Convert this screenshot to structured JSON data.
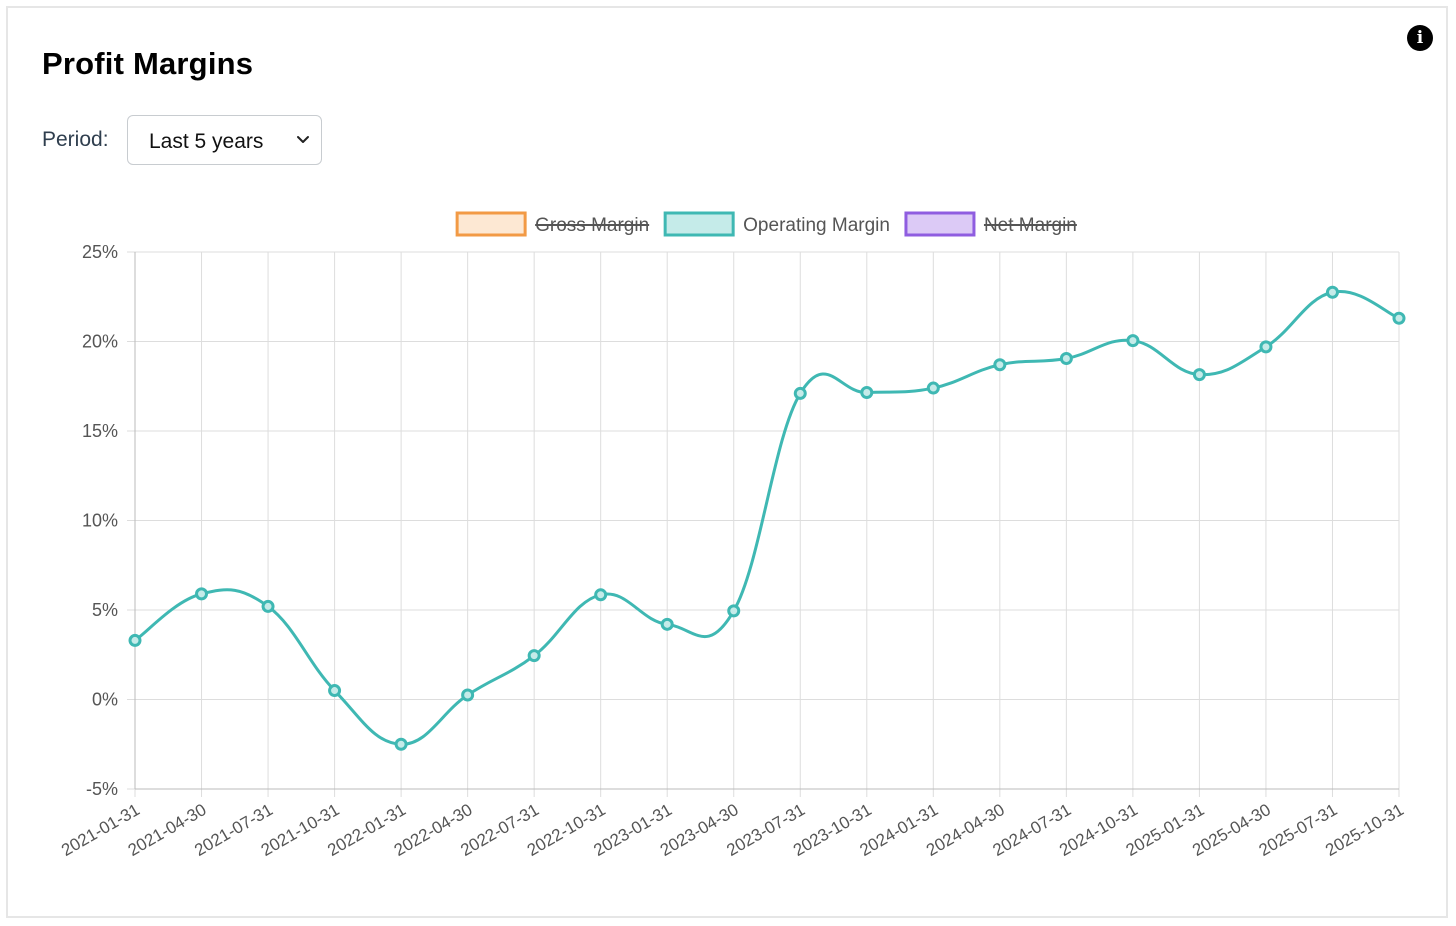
{
  "card": {
    "title": "Profit Margins",
    "info_icon": "info-icon",
    "period": {
      "label": "Period:",
      "selected": "Last 5 years",
      "icon": "chevron-down-icon"
    }
  },
  "colors": {
    "gross": "#f29a45",
    "gross_fill": "#fde8d3",
    "operating": "#3fb8b3",
    "operating_fill": "#c5ebe9",
    "net": "#8f5de0",
    "net_fill": "#dccaf6",
    "grid": "#dddddd",
    "axis_text": "#555555"
  },
  "chart_data": {
    "type": "line",
    "ylim": [
      -5,
      25
    ],
    "yticks": [
      "25%",
      "20%",
      "15%",
      "10%",
      "5%",
      "0%",
      "-5%"
    ],
    "ytick_values": [
      25,
      20,
      15,
      10,
      5,
      0,
      -5
    ],
    "categories": [
      "2021-01-31",
      "2021-04-30",
      "2021-07-31",
      "2021-10-31",
      "2022-01-31",
      "2022-04-30",
      "2022-07-31",
      "2022-10-31",
      "2023-01-31",
      "2023-04-30",
      "2023-07-31",
      "2023-10-31",
      "2024-01-31",
      "2024-04-30",
      "2024-07-31",
      "2024-10-31",
      "2025-01-31",
      "2025-04-30",
      "2025-07-31",
      "2025-10-31"
    ],
    "legend": [
      {
        "name": "Gross Margin",
        "hidden": true,
        "color_key": "gross"
      },
      {
        "name": "Operating Margin",
        "hidden": false,
        "color_key": "operating"
      },
      {
        "name": "Net Margin",
        "hidden": true,
        "color_key": "net"
      }
    ],
    "series": [
      {
        "name": "Operating Margin",
        "values": [
          3.3,
          5.9,
          5.2,
          0.5,
          -2.5,
          0.25,
          2.45,
          5.85,
          4.2,
          4.95,
          17.1,
          17.15,
          17.4,
          18.7,
          19.05,
          20.05,
          18.15,
          19.7,
          22.75,
          21.3
        ]
      }
    ],
    "grid": true,
    "legend_position": "top-center"
  }
}
